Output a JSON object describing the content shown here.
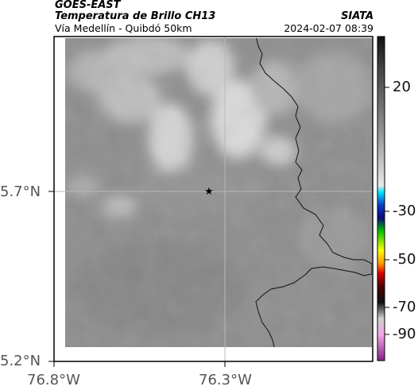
{
  "header": {
    "satellite": "GOES-EAST",
    "product": "Temperatura de Brillo CH13",
    "agency": "SIATA",
    "region": "Vía Medellín - Quibdó 50km",
    "timestamp": "2024-02-07 08:39"
  },
  "axes": {
    "y_ticks": [
      {
        "label": "5.7°N",
        "value": 5.7
      },
      {
        "label": "5.2°N",
        "value": 5.2
      }
    ],
    "x_ticks": [
      {
        "label": "76.8°W",
        "value": -76.8
      },
      {
        "label": "76.3°W",
        "value": -76.3
      }
    ],
    "grid": true
  },
  "marker": {
    "symbol": "★",
    "name": "location-star"
  },
  "colorbar": {
    "ticks": [
      "20",
      "-30",
      "-50",
      "-70",
      "-90"
    ],
    "min": -93,
    "max": 43
  },
  "colors": {
    "map_base": "#8e8e8e",
    "cloud_bright": "#d6d6d6",
    "coast": "#111111",
    "grid": "#b8b8b8"
  }
}
